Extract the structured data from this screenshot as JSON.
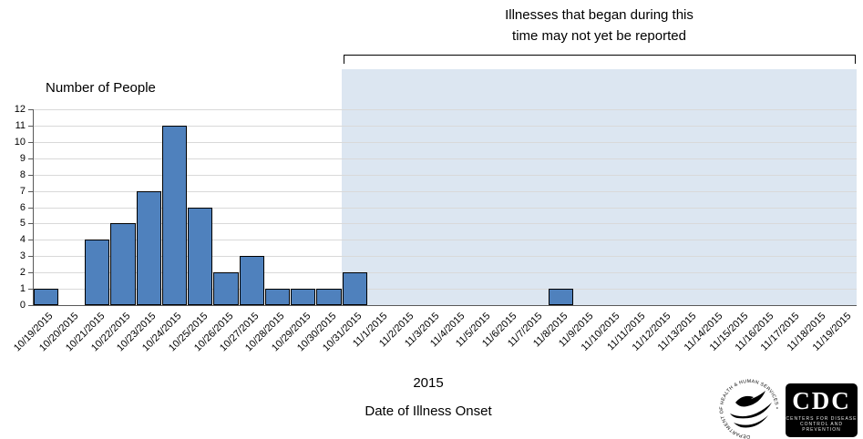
{
  "annotation": {
    "line1": "Illnesses that began during this",
    "line2": "time may not yet be reported"
  },
  "chart_data": {
    "type": "bar",
    "title": "",
    "ylabel": "Number of People",
    "xlabel": "Date of Illness Onset",
    "year_label": "2015",
    "ylim": [
      0,
      12
    ],
    "ytick_step": 1,
    "grid": true,
    "bar_color": "#4f81bd",
    "shade_color": "#dce6f1",
    "categories": [
      "10/19/2015",
      "10/20/2015",
      "10/21/2015",
      "10/22/2015",
      "10/23/2015",
      "10/24/2015",
      "10/25/2015",
      "10/26/2015",
      "10/27/2015",
      "10/28/2015",
      "10/29/2015",
      "10/30/2015",
      "10/31/2015",
      "11/1/2015",
      "11/2/2015",
      "11/3/2015",
      "11/4/2015",
      "11/5/2015",
      "11/6/2015",
      "11/7/2015",
      "11/8/2015",
      "11/9/2015",
      "11/10/2015",
      "11/11/2015",
      "11/12/2015",
      "11/13/2015",
      "11/14/2015",
      "11/15/2015",
      "11/16/2015",
      "11/17/2015",
      "11/18/2015",
      "11/19/2015"
    ],
    "values": [
      1,
      0,
      4,
      5,
      7,
      11,
      6,
      2,
      3,
      1,
      1,
      1,
      2,
      0,
      0,
      0,
      0,
      0,
      0,
      0,
      1,
      0,
      0,
      0,
      0,
      0,
      0,
      0,
      0,
      0,
      0,
      0
    ],
    "shaded_region": {
      "start_category": "10/31/2015",
      "note": "Illnesses that began during this time may not yet be reported"
    }
  },
  "logos": {
    "cdc_text": "CDC",
    "cdc_sub1": "CENTERS FOR DISEASE",
    "cdc_sub2": "CONTROL AND PREVENTION",
    "hhs_text": "DEPARTMENT OF HEALTH & HUMAN SERVICES • USA"
  }
}
